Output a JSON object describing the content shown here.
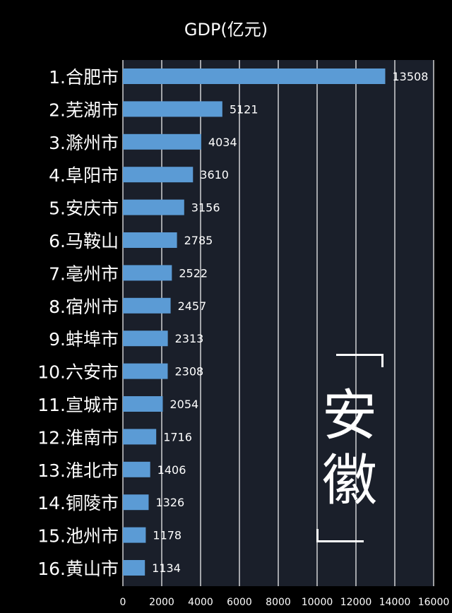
{
  "chart_data": {
    "type": "bar",
    "orientation": "horizontal",
    "title": "GDP(亿元)",
    "categories": [
      "1.合肥市",
      "2.芜湖市",
      "3.滁州市",
      "4.阜阳市",
      "5.安庆市",
      "6.马鞍山",
      "7.亳州市",
      "8.宿州市",
      "9.蚌埠市",
      "10.六安市",
      "11.宣城市",
      "12.淮南市",
      "13.淮北市",
      "14.铜陵市",
      "15.池州市",
      "16.黄山市"
    ],
    "values": [
      13508,
      5121,
      4034,
      3610,
      3156,
      2785,
      2522,
      2457,
      2313,
      2308,
      2054,
      1716,
      1406,
      1326,
      1178,
      1134
    ],
    "data_labels": [
      "13508",
      "5121",
      "4034",
      "3610",
      "3156",
      "2785",
      "2522",
      "2457",
      "2313",
      "2308",
      "2054",
      "1716",
      "1406",
      "1326",
      "1178",
      "1134"
    ],
    "xlim": [
      0,
      16000
    ],
    "x_ticks": [
      "0",
      "2000",
      "4000",
      "6000",
      "8000",
      "10000",
      "12000",
      "14000",
      "16000"
    ],
    "grid": "vertical",
    "region_label": "安徽",
    "colors": {
      "background": "#000000",
      "plot_area": "#1a1f2a",
      "bar": "#5b9bd5",
      "gridline": "#ffffff",
      "text": "#ffffff"
    }
  }
}
